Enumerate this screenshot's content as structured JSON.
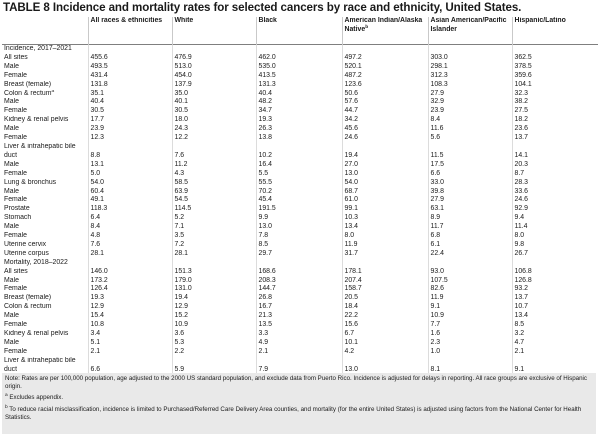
{
  "title": "TABLE 8 Incidence and mortality rates for selected cancers by race and ethnicity, United States.",
  "headers": [
    "",
    "All races & ethnicities",
    "White",
    "Black",
    "American Indian/Alaska Native",
    "Asian American/Pacific Islander",
    "Hispanic/Latino"
  ],
  "header_aian_sup": "b",
  "rows": [
    {
      "label": "Incidence, 2017–2021",
      "values": [
        "",
        "",
        "",
        "",
        "",
        ""
      ]
    },
    {
      "label": "All sites",
      "values": [
        "455.6",
        "476.9",
        "462.0",
        "497.2",
        "303.0",
        "362.5"
      ]
    },
    {
      "label": "Male",
      "values": [
        "493.5",
        "513.0",
        "535.0",
        "520.1",
        "298.1",
        "378.5"
      ]
    },
    {
      "label": "Female",
      "values": [
        "431.4",
        "454.0",
        "413.5",
        "487.2",
        "312.3",
        "359.6"
      ]
    },
    {
      "label": "Breast (female)",
      "values": [
        "131.8",
        "137.9",
        "131.3",
        "123.6",
        "108.3",
        "104.1"
      ]
    },
    {
      "label": "Colon & rectum",
      "sup": "a",
      "values": [
        "35.1",
        "35.0",
        "40.4",
        "50.6",
        "27.9",
        "32.3"
      ]
    },
    {
      "label": "Male",
      "values": [
        "40.4",
        "40.1",
        "48.2",
        "57.6",
        "32.9",
        "38.2"
      ]
    },
    {
      "label": "Female",
      "values": [
        "30.5",
        "30.5",
        "34.7",
        "44.7",
        "23.9",
        "27.5"
      ]
    },
    {
      "label": "Kidney & renal pelvis",
      "values": [
        "17.7",
        "18.0",
        "19.3",
        "34.2",
        "8.4",
        "18.2"
      ]
    },
    {
      "label": "Male",
      "values": [
        "23.9",
        "24.3",
        "26.3",
        "45.6",
        "11.6",
        "23.6"
      ]
    },
    {
      "label": "Female",
      "values": [
        "12.3",
        "12.2",
        "13.8",
        "24.6",
        "5.6",
        "13.7"
      ]
    },
    {
      "label": "Liver & intrahepatic bile duct",
      "wrap": true,
      "values": [
        "8.8",
        "7.6",
        "10.2",
        "19.4",
        "11.5",
        "14.1"
      ]
    },
    {
      "label": "Male",
      "values": [
        "13.1",
        "11.2",
        "16.4",
        "27.0",
        "17.5",
        "20.3"
      ]
    },
    {
      "label": "Female",
      "values": [
        "5.0",
        "4.3",
        "5.5",
        "13.0",
        "6.6",
        "8.7"
      ]
    },
    {
      "label": "Lung & bronchus",
      "values": [
        "54.0",
        "58.5",
        "55.5",
        "54.0",
        "33.0",
        "28.3"
      ]
    },
    {
      "label": "Male",
      "values": [
        "60.4",
        "63.9",
        "70.2",
        "68.7",
        "39.8",
        "33.6"
      ]
    },
    {
      "label": "Female",
      "values": [
        "49.1",
        "54.5",
        "45.4",
        "61.0",
        "27.9",
        "24.6"
      ]
    },
    {
      "label": "Prostate",
      "values": [
        "118.3",
        "114.5",
        "191.5",
        "99.1",
        "63.1",
        "92.9"
      ]
    },
    {
      "label": "Stomach",
      "values": [
        "6.4",
        "5.2",
        "9.9",
        "10.3",
        "8.9",
        "9.4"
      ]
    },
    {
      "label": "Male",
      "values": [
        "8.4",
        "7.1",
        "13.0",
        "13.4",
        "11.7",
        "11.4"
      ]
    },
    {
      "label": "Female",
      "values": [
        "4.8",
        "3.5",
        "7.8",
        "8.0",
        "6.8",
        "8.0"
      ]
    },
    {
      "label": "Uterine cervix",
      "values": [
        "7.6",
        "7.2",
        "8.5",
        "11.9",
        "6.1",
        "9.8"
      ]
    },
    {
      "label": "Uterine corpus",
      "values": [
        "28.1",
        "28.1",
        "29.7",
        "31.7",
        "22.4",
        "26.7"
      ]
    },
    {
      "label": "Mortality, 2018–2022",
      "values": [
        "",
        "",
        "",
        "",
        "",
        ""
      ]
    },
    {
      "label": "All sites",
      "values": [
        "146.0",
        "151.3",
        "168.6",
        "178.1",
        "93.0",
        "106.8"
      ]
    },
    {
      "label": "Male",
      "values": [
        "173.2",
        "179.0",
        "208.3",
        "207.4",
        "107.5",
        "126.8"
      ]
    },
    {
      "label": "Female",
      "values": [
        "126.4",
        "131.0",
        "144.7",
        "158.7",
        "82.6",
        "93.2"
      ]
    },
    {
      "label": "Breast (female)",
      "values": [
        "19.3",
        "19.4",
        "26.8",
        "20.5",
        "11.9",
        "13.7"
      ]
    },
    {
      "label": "Colon & rectum",
      "values": [
        "12.9",
        "12.9",
        "16.7",
        "18.4",
        "9.1",
        "10.7"
      ]
    },
    {
      "label": "Male",
      "values": [
        "15.4",
        "15.2",
        "21.3",
        "22.2",
        "10.9",
        "13.4"
      ]
    },
    {
      "label": "Female",
      "values": [
        "10.8",
        "10.9",
        "13.5",
        "15.6",
        "7.7",
        "8.5"
      ]
    },
    {
      "label": "Kidney & renal pelvis",
      "values": [
        "3.4",
        "3.6",
        "3.3",
        "6.7",
        "1.6",
        "3.2"
      ]
    },
    {
      "label": "Male",
      "values": [
        "5.1",
        "5.3",
        "4.9",
        "10.1",
        "2.3",
        "4.7"
      ]
    },
    {
      "label": "Female",
      "values": [
        "2.1",
        "2.2",
        "2.1",
        "4.2",
        "1.0",
        "2.1"
      ]
    },
    {
      "label": "Liver & intrahepatic bile duct",
      "wrap": true,
      "values": [
        "6.6",
        "5.9",
        "7.9",
        "13.0",
        "8.1",
        "9.1"
      ]
    }
  ],
  "notes": {
    "main": "Note: Rates are per 100,000 population, age adjusted to the 2000 US standard population, and exclude data from Puerto Rico. Incidence is adjusted for delays in reporting. All race groups are exclusive of Hispanic origin.",
    "a_marker": "a",
    "a_text": "Excludes appendix.",
    "b_marker": "b",
    "b_text": "To reduce racial misclassification, incidence is limited to Purchased/Referred Care Delivery Area counties, and mortality (for the entire United States) is adjusted using factors from the National Center for Health Statistics."
  }
}
